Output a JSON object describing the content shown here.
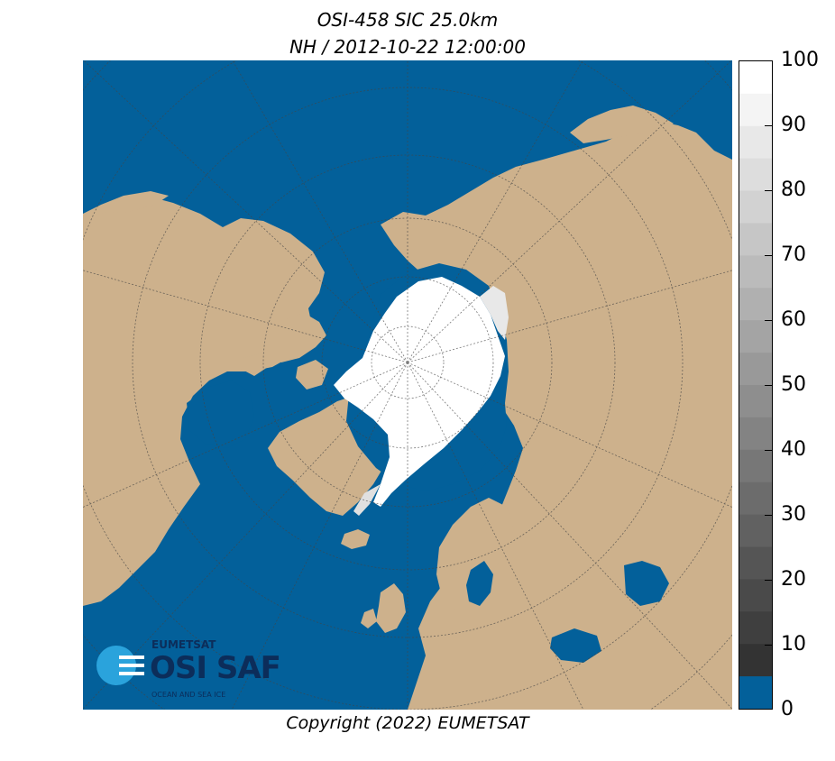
{
  "header": {
    "title_line1": "OSI-458 SIC 25.0km",
    "title_line2": "NH / 2012-10-22 12:00:00"
  },
  "map": {
    "projection": "polar stereographic (north)",
    "colors": {
      "ocean": "#03609a",
      "land": "#cdb18c",
      "ice": "#ffffff",
      "graticule": "#555555"
    }
  },
  "colorbar": {
    "ticks": [
      "0",
      "10",
      "20",
      "30",
      "40",
      "50",
      "60",
      "70",
      "80",
      "90",
      "100"
    ],
    "range": [
      0,
      100
    ],
    "open_water_color": "#03609a"
  },
  "logo": {
    "org": "EUMETSAT",
    "product": "OSI SAF",
    "tagline": "OCEAN AND SEA ICE"
  },
  "footer": {
    "copyright": "Copyright (2022)  EUMETSAT"
  }
}
